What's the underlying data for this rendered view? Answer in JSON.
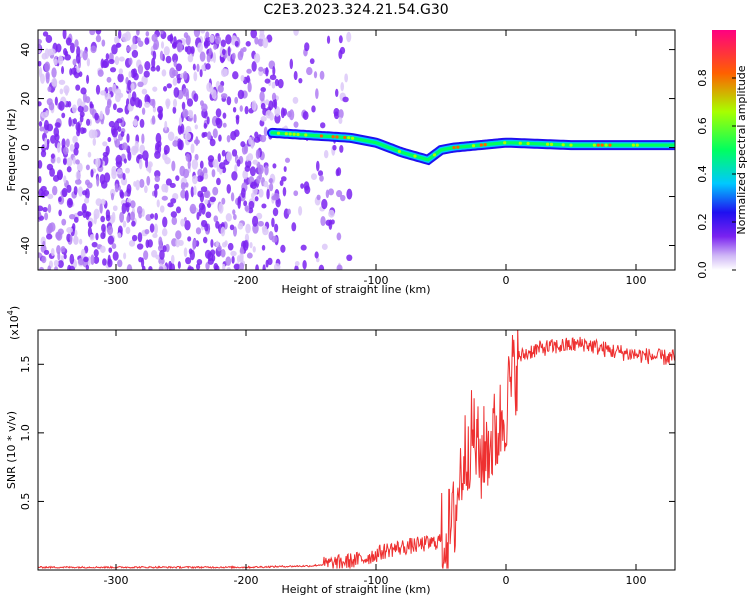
{
  "figure": {
    "title": "C2E3.2023.324.21.54.G30"
  },
  "chart_data": [
    {
      "type": "heatmap",
      "xlabel": "Height of straight line (km)",
      "ylabel": "Frequency (Hz)",
      "xlim": [
        -360,
        130
      ],
      "ylim": [
        -50,
        48
      ],
      "xticks": [
        -300,
        -200,
        -100,
        0,
        100
      ],
      "yticks": [
        -40,
        -20,
        0,
        20,
        40
      ],
      "colorbar": {
        "label": "Normalized spectral amplitude",
        "range": [
          0.0,
          1.0
        ],
        "ticks": [
          "0.0",
          "0.2",
          "0.4",
          "0.6",
          "0.8"
        ],
        "tick_values": [
          0.0,
          0.2,
          0.4,
          0.6,
          0.8
        ],
        "colormap": [
          "#ffffff",
          "#cfb6f6",
          "#7a22f0",
          "#1f10f0",
          "#00c8ff",
          "#00ff60",
          "#a8ff00",
          "#ff6000",
          "#ff0080"
        ]
      },
      "ridge": {
        "description_points_x": [
          -180,
          -150,
          -120,
          -100,
          -80,
          -60,
          -50,
          -40,
          -20,
          0,
          50,
          100,
          130
        ],
        "description_points_y": [
          6,
          5,
          4,
          2,
          -2,
          -5,
          -1,
          0,
          1,
          2,
          1,
          1,
          1
        ]
      },
      "noise_region_x": [
        -360,
        -175
      ]
    },
    {
      "type": "line",
      "xlabel": "Height of straight line (km)",
      "ylabel": "SNR (10 * v/v)",
      "multiplier_label": "(x10",
      "multiplier_exp": "4",
      "multiplier_close": ")",
      "xlim": [
        -360,
        130
      ],
      "ylim": [
        0,
        1.75
      ],
      "xticks": [
        -300,
        -200,
        -100,
        0,
        100
      ],
      "yticks": [
        0.5,
        1.0,
        1.5
      ],
      "ytick_labels": [
        "0.5",
        "1.0",
        "1.5"
      ],
      "series": [
        {
          "color": "#ee3030",
          "x": [
            -360,
            -300,
            -200,
            -150,
            -130,
            -110,
            -90,
            -70,
            -55,
            -45,
            -40,
            -35,
            -30,
            -25,
            -20,
            -15,
            -10,
            -5,
            0,
            5,
            10,
            20,
            30,
            40,
            60,
            80,
            100,
            120,
            130
          ],
          "y": [
            0.02,
            0.02,
            0.02,
            0.03,
            0.05,
            0.08,
            0.15,
            0.18,
            0.2,
            0.25,
            0.35,
            0.7,
            0.9,
            1.0,
            0.8,
            0.9,
            0.95,
            1.05,
            1.2,
            1.4,
            1.55,
            1.6,
            1.62,
            1.63,
            1.65,
            1.6,
            1.57,
            1.55,
            1.55
          ]
        }
      ]
    }
  ]
}
